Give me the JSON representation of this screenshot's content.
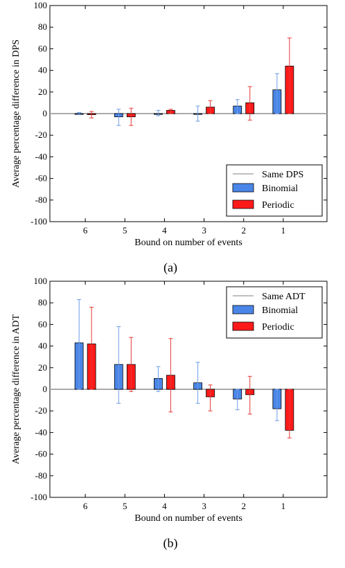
{
  "colors": {
    "binomial": "#4a86e8",
    "periodic": "#ff1a1a",
    "binomial_err": "#6b9be6",
    "periodic_err": "#e53935",
    "baseline": "#aaaaaa"
  },
  "chart_data": [
    {
      "type": "bar",
      "caption": "(a)",
      "xlabel": "Bound on number of events",
      "ylabel": "Average percentage difference in DPS",
      "ylim": [
        -100,
        100
      ],
      "yticks": [
        100,
        80,
        60,
        40,
        20,
        0,
        -20,
        -40,
        -60,
        -80,
        -100
      ],
      "yticklabels": [
        "100",
        "80",
        "60",
        "40",
        "20",
        "0",
        "-20",
        "-40",
        "-60",
        "-80",
        "-100"
      ],
      "categories": [
        "6",
        "5",
        "4",
        "3",
        "2",
        "1"
      ],
      "legend_position": "lower-right",
      "legend": [
        "Same DPS",
        "Binomial",
        "Periodic"
      ],
      "series": [
        {
          "name": "Binomial",
          "values": [
            0,
            -3,
            0,
            0,
            7,
            22
          ],
          "err_low": [
            -1,
            -11,
            -2,
            -7,
            0,
            0
          ],
          "err_high": [
            1,
            4,
            3,
            7,
            13,
            37
          ]
        },
        {
          "name": "Periodic",
          "values": [
            -1,
            -3,
            3,
            6,
            10,
            44
          ],
          "err_low": [
            -4,
            -11,
            0,
            0,
            -6,
            0
          ],
          "err_high": [
            2,
            5,
            4,
            12,
            25,
            70
          ]
        }
      ]
    },
    {
      "type": "bar",
      "caption": "(b)",
      "xlabel": "Bound on number of events",
      "ylabel": "Average percentage difference in ADT",
      "ylim": [
        -100,
        100
      ],
      "yticks": [
        100,
        80,
        60,
        40,
        20,
        0,
        -20,
        -40,
        -60,
        -80,
        -100
      ],
      "yticklabels": [
        "100",
        "80",
        "60",
        "40",
        "20",
        "0",
        "-20",
        "-40",
        "-60",
        "-80",
        "-100"
      ],
      "categories": [
        "6",
        "5",
        "4",
        "3",
        "2",
        "1"
      ],
      "legend_position": "top-right",
      "legend": [
        "Same ADT",
        "Binomial",
        "Periodic"
      ],
      "series": [
        {
          "name": "Binomial",
          "values": [
            43,
            23,
            10,
            6,
            -9,
            -18
          ],
          "err_low": [
            0,
            -13,
            -2,
            -13,
            -19,
            -29
          ],
          "err_high": [
            83,
            58,
            21,
            25,
            0,
            0
          ]
        },
        {
          "name": "Periodic",
          "values": [
            42,
            23,
            13,
            -7,
            -5,
            -38
          ],
          "err_low": [
            0,
            -2,
            -21,
            -20,
            -23,
            -45
          ],
          "err_high": [
            76,
            48,
            47,
            4,
            12,
            0
          ]
        }
      ]
    }
  ]
}
